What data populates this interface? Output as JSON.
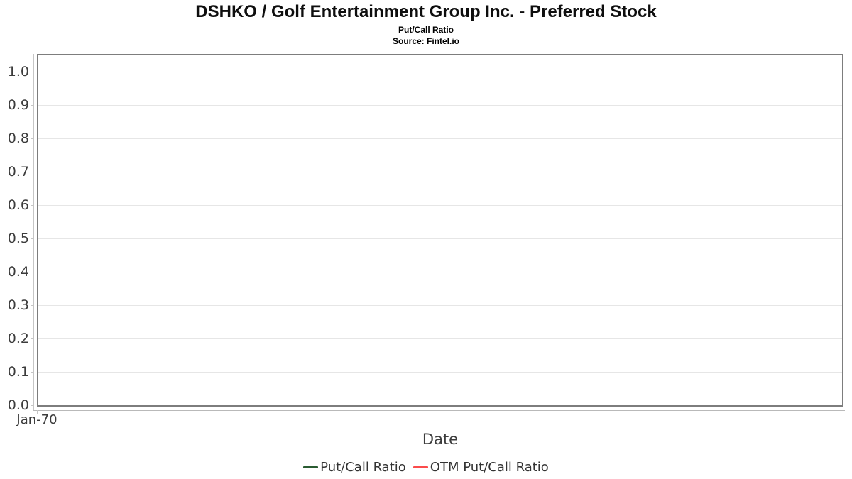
{
  "chart_data": {
    "type": "line",
    "title": "DSHKO / Golf Entertainment Group Inc. - Preferred Stock",
    "subtitle": "Put/Call Ratio",
    "source": "Source: Fintel.io",
    "xlabel": "Date",
    "ylabel": "",
    "ylim": [
      0,
      1.05
    ],
    "grid": true,
    "legend_position": "bottom",
    "y_ticks": [
      {
        "value": 0.0,
        "label": "0.0"
      },
      {
        "value": 0.1,
        "label": "0.1"
      },
      {
        "value": 0.2,
        "label": "0.2"
      },
      {
        "value": 0.3,
        "label": "0.3"
      },
      {
        "value": 0.4,
        "label": "0.4"
      },
      {
        "value": 0.5,
        "label": "0.5"
      },
      {
        "value": 0.6,
        "label": "0.6"
      },
      {
        "value": 0.7,
        "label": "0.7"
      },
      {
        "value": 0.8,
        "label": "0.8"
      },
      {
        "value": 0.9,
        "label": "0.9"
      },
      {
        "value": 1.0,
        "label": "1.0"
      }
    ],
    "x_ticks": [
      {
        "position": 0.0,
        "label": "Jan-70"
      }
    ],
    "series": [
      {
        "name": "Put/Call Ratio",
        "color": "#2a5c32",
        "x": [],
        "values": []
      },
      {
        "name": "OTM Put/Call Ratio",
        "color": "#fb4b4b",
        "x": [],
        "values": []
      }
    ],
    "colors": {
      "plot_border": "#7d7d7d",
      "gridline": "#e6e6e6",
      "axis_line": "#c6c6c6",
      "tick_text": "#3c3c3c",
      "legend_text": "#333333",
      "title_text": "#0e0e0e"
    }
  }
}
